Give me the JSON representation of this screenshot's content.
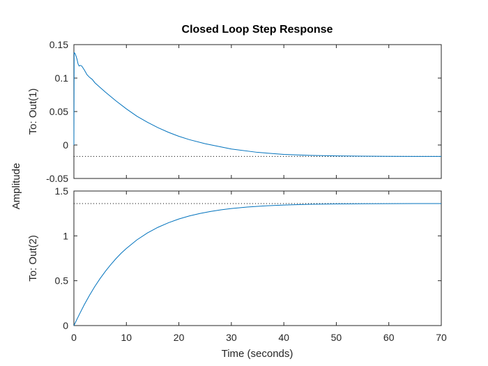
{
  "chart_data": {
    "type": "line",
    "title": "Closed Loop Step Response",
    "xlabel": "Time (seconds)",
    "ylabel": "Amplitude",
    "xlim": [
      0,
      70
    ],
    "x_ticks": [
      0,
      10,
      20,
      30,
      40,
      50,
      60,
      70
    ],
    "x_tick_labels": [
      "0",
      "10",
      "20",
      "30",
      "40",
      "50",
      "60",
      "70"
    ],
    "grid": false,
    "legend": "none",
    "line_color": "#0072BD",
    "steady_state_line_color": "#000000",
    "subplots": [
      {
        "ylabel": "To: Out(1)",
        "ylim": [
          -0.05,
          0.15
        ],
        "y_ticks": [
          -0.05,
          0,
          0.05,
          0.1,
          0.15
        ],
        "y_tick_labels": [
          "-0.05",
          "0",
          "0.05",
          "0.1",
          "0.15"
        ],
        "steady_state": -0.017,
        "series": [
          {
            "x": [
              0,
              0.05,
              0.2,
              0.4,
              0.6,
              0.8,
              1.0,
              1.2,
              1.5,
              2.0,
              2.5,
              3.0,
              3.5,
              4.0,
              5,
              6,
              8,
              10,
              12,
              14,
              16,
              18,
              20,
              22,
              25,
              30,
              35,
              40,
              45,
              50,
              55,
              60,
              65,
              70
            ],
            "y": [
              0,
              0.138,
              0.137,
              0.133,
              0.128,
              0.121,
              0.118,
              0.119,
              0.118,
              0.112,
              0.105,
              0.101,
              0.098,
              0.093,
              0.086,
              0.079,
              0.066,
              0.054,
              0.043,
              0.034,
              0.026,
              0.019,
              0.013,
              0.008,
              0.002,
              -0.006,
              -0.011,
              -0.014,
              -0.0155,
              -0.0163,
              -0.0167,
              -0.0169,
              -0.017,
              -0.017
            ]
          }
        ]
      },
      {
        "ylabel": "To: Out(2)",
        "ylim": [
          0,
          1.5
        ],
        "y_ticks": [
          0,
          0.5,
          1,
          1.5
        ],
        "y_tick_labels": [
          "0",
          "0.5",
          "1",
          "1.5"
        ],
        "steady_state": 1.36,
        "series": [
          {
            "x": [
              0,
              1,
              2,
              3,
              4,
              5,
              6,
              7,
              8,
              9,
              10,
              12,
              14,
              16,
              18,
              20,
              22,
              24,
              26,
              28,
              30,
              33,
              36,
              40,
              45,
              50,
              55,
              60,
              65,
              70
            ],
            "y": [
              0,
              0.12,
              0.235,
              0.34,
              0.437,
              0.525,
              0.605,
              0.678,
              0.745,
              0.806,
              0.86,
              0.955,
              1.032,
              1.095,
              1.146,
              1.188,
              1.222,
              1.249,
              1.272,
              1.29,
              1.305,
              1.321,
              1.333,
              1.344,
              1.352,
              1.356,
              1.358,
              1.359,
              1.36,
              1.36
            ]
          }
        ]
      }
    ]
  }
}
